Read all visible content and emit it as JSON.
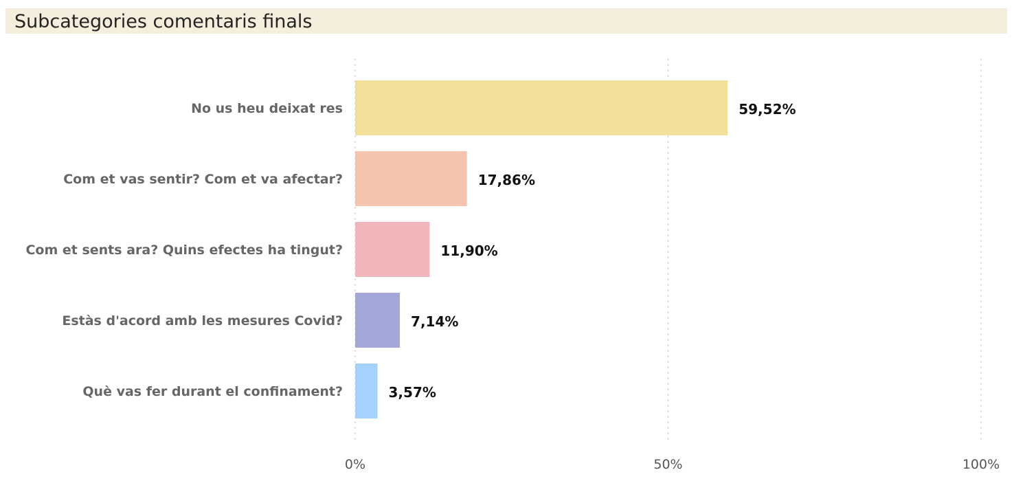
{
  "chart_data": {
    "type": "bar",
    "orientation": "horizontal",
    "title": "Subcategories comentaris finals",
    "categories": [
      "No us heu deixat res",
      "Com et vas sentir? Com et va afectar?",
      "Com et sents ara? Quins efectes ha tingut?",
      "Estàs d'acord amb les mesures Covid?",
      "Què vas fer durant el confinament?"
    ],
    "values": [
      59.52,
      17.86,
      11.9,
      7.14,
      3.57
    ],
    "value_labels": [
      "59,52%",
      "17,86%",
      "11,90%",
      "7,14%",
      "3,57%"
    ],
    "colors": [
      "#f0e098",
      "#f4c4ae",
      "#f0b6b9",
      "#a3a7d7",
      "#a4d2fd"
    ],
    "xlim": [
      0,
      100
    ],
    "xticks": [
      0,
      50,
      100
    ],
    "xtick_labels": [
      "0%",
      "50%",
      "100%"
    ],
    "grid": "vertical-dotted",
    "legend": "none"
  }
}
